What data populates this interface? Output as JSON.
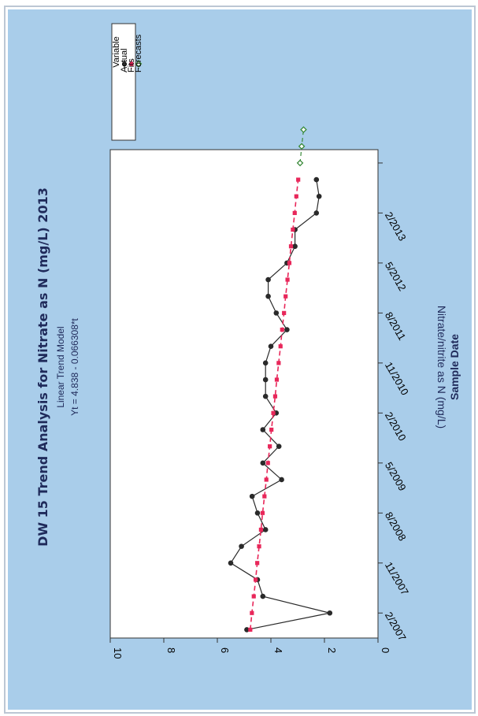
{
  "chart_data": {
    "type": "line",
    "title": "DW 15 Trend Analysis for Nitrate as N (mg/L) 2013",
    "subtitle": "Linear Trend Model",
    "equation": "Yt = 4.838 - 0.066308*t",
    "xlabel": "Sample Date",
    "ylabel": "Nitrate/nitrite as N (mg/L)",
    "ylim": [
      0,
      10
    ],
    "y_ticks": [
      0,
      2,
      4,
      6,
      8,
      10
    ],
    "x_ticks": [
      {
        "label": "2/2007",
        "t": 2
      },
      {
        "label": "11/2007",
        "t": 5
      },
      {
        "label": "8/2008",
        "t": 8
      },
      {
        "label": "5/2009",
        "t": 11
      },
      {
        "label": "2/2010",
        "t": 14
      },
      {
        "label": "11/2010",
        "t": 17
      },
      {
        "label": "8/2011",
        "t": 20
      },
      {
        "label": "5/2012",
        "t": 23
      },
      {
        "label": "2/2013",
        "t": 26
      },
      {
        "label": "",
        "t": 29
      }
    ],
    "x_range": [
      0.5,
      29.8
    ],
    "legend": {
      "title": "Variable",
      "placement": "top-right",
      "entries": [
        "Actual",
        "Fits",
        "Forecasts"
      ]
    },
    "series": [
      {
        "name": "Actual",
        "color": "#2a2a2a",
        "marker": "circle",
        "t": [
          1,
          2,
          3,
          4,
          5,
          6,
          7,
          8,
          9,
          10,
          11,
          12,
          13,
          14,
          15,
          16,
          17,
          18,
          19,
          20,
          21,
          22,
          23,
          24,
          25,
          26,
          27,
          28
        ],
        "values": [
          4.9,
          1.8,
          4.3,
          4.5,
          5.5,
          5.1,
          4.2,
          4.5,
          4.7,
          3.6,
          4.3,
          3.7,
          4.3,
          3.8,
          4.2,
          4.2,
          4.2,
          4.0,
          3.4,
          3.8,
          4.1,
          4.1,
          3.4,
          3.1,
          3.1,
          2.3,
          2.2,
          2.3
        ]
      },
      {
        "name": "Fits",
        "color": "#e8275a",
        "marker": "square",
        "t": [
          1,
          2,
          3,
          4,
          5,
          6,
          7,
          8,
          9,
          10,
          11,
          12,
          13,
          14,
          15,
          16,
          17,
          18,
          19,
          20,
          21,
          22,
          23,
          24,
          25,
          26,
          27,
          28
        ],
        "values": [
          4.77,
          4.71,
          4.64,
          4.57,
          4.51,
          4.44,
          4.37,
          4.31,
          4.24,
          4.17,
          4.11,
          4.04,
          3.98,
          3.91,
          3.84,
          3.78,
          3.71,
          3.64,
          3.58,
          3.51,
          3.45,
          3.38,
          3.31,
          3.25,
          3.18,
          3.11,
          3.05,
          2.98
        ]
      },
      {
        "name": "Forecasts",
        "color": "#3a8a3a",
        "marker": "diamond",
        "t": [
          29,
          30,
          31
        ],
        "values": [
          2.91,
          2.85,
          2.78
        ]
      }
    ]
  }
}
